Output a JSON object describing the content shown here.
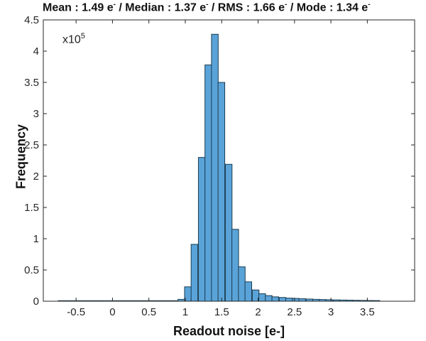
{
  "chart_data": {
    "type": "bar",
    "title": "Mean : 1.49 e⁻ / Median : 1.37 e⁻ / RMS : 1.66 e⁻ / Mode : 1.34 e⁻",
    "stats": {
      "mean": 1.49,
      "median": 1.37,
      "rms": 1.66,
      "mode": 1.34,
      "unit": "e-"
    },
    "xlabel": "Readout noise [e-]",
    "ylabel": "Frequency",
    "y_multiplier": "x10^5",
    "xlim": [
      -0.95,
      4.15
    ],
    "ylim": [
      0,
      4.5
    ],
    "xticks": [
      -0.5,
      0,
      0.5,
      1,
      1.5,
      2,
      2.5,
      3,
      3.5
    ],
    "yticks": [
      0,
      0.5,
      1,
      1.5,
      2,
      2.5,
      3,
      3.5,
      4,
      4.5
    ],
    "bin_width": 0.092,
    "bin_left_edges": [
      0.9,
      0.99,
      1.08,
      1.18,
      1.27,
      1.36,
      1.45,
      1.55,
      1.64,
      1.73,
      1.82,
      1.92,
      2.01,
      2.1,
      2.19,
      2.29,
      2.38,
      2.47,
      2.56,
      2.66,
      2.75,
      2.84,
      2.93,
      3.03,
      3.12,
      3.21,
      3.3,
      3.4,
      3.49,
      3.58
    ],
    "values": [
      0.03,
      0.23,
      0.91,
      2.3,
      3.78,
      4.27,
      3.5,
      2.19,
      1.15,
      0.55,
      0.31,
      0.18,
      0.12,
      0.09,
      0.07,
      0.06,
      0.05,
      0.045,
      0.04,
      0.035,
      0.03,
      0.027,
      0.024,
      0.021,
      0.019,
      0.017,
      0.015,
      0.013,
      0.011,
      0.01
    ],
    "baseline_segment": [
      -0.75,
      0.9
    ],
    "grid": false,
    "bar_color": "#5aa3d8",
    "edge_color": "#1c3d52"
  },
  "labels": {
    "title_parts": [
      "Mean : 1.49 e",
      " / Median : 1.37 e",
      " / RMS : 1.66 e",
      " / Mode : 1.34 e"
    ],
    "sup": "-",
    "exp_base": "x10",
    "exp_power": "5",
    "xlabel": "Readout noise [e-]",
    "ylabel": "Frequency"
  }
}
